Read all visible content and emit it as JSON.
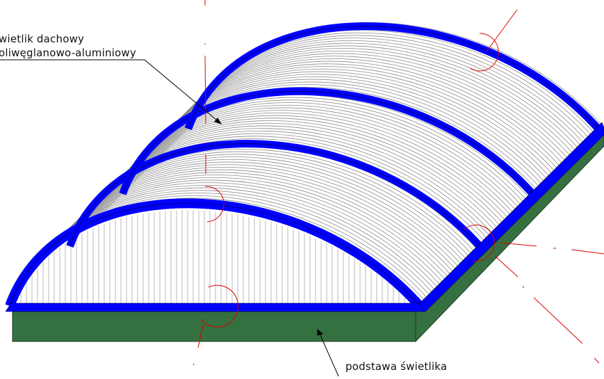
{
  "labels": {
    "skylight_line1": "wietlik dachowy",
    "skylight_line2": "oliwęglanowo-aluminiowy",
    "base": "podstawa świetlika"
  },
  "colors": {
    "frame": "#0000ff",
    "base_top": "#2f6b3c",
    "base_side": "#357040",
    "panel_lines": "#8a8a8a",
    "annotation_lines": "#e00000",
    "leader_lines": "#000000"
  }
}
